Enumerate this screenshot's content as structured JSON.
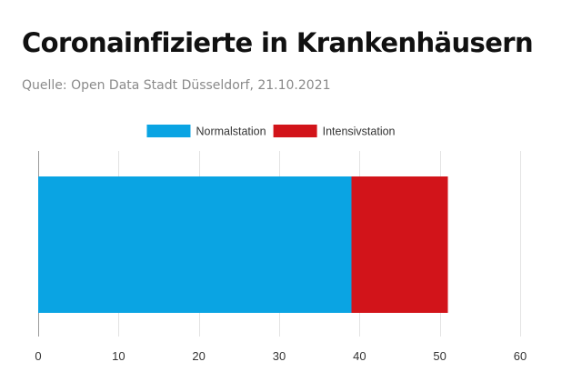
{
  "header": {
    "title": "Coronainfizierte in Krankenhäusern",
    "source": "Quelle: Open Data Stadt Düsseldorf, 21.10.2021"
  },
  "chart_data": {
    "type": "bar",
    "orientation": "horizontal",
    "stacked": true,
    "categories": [
      ""
    ],
    "series": [
      {
        "name": "Normalstation",
        "values": [
          39
        ],
        "color": "#0aa4e3"
      },
      {
        "name": "Intensivstation",
        "values": [
          12
        ],
        "color": "#d2141a"
      }
    ],
    "xlim": [
      0,
      60
    ],
    "xticks": [
      0,
      10,
      20,
      30,
      40,
      50,
      60
    ],
    "legend_position": "top-center",
    "grid": "vertical"
  }
}
